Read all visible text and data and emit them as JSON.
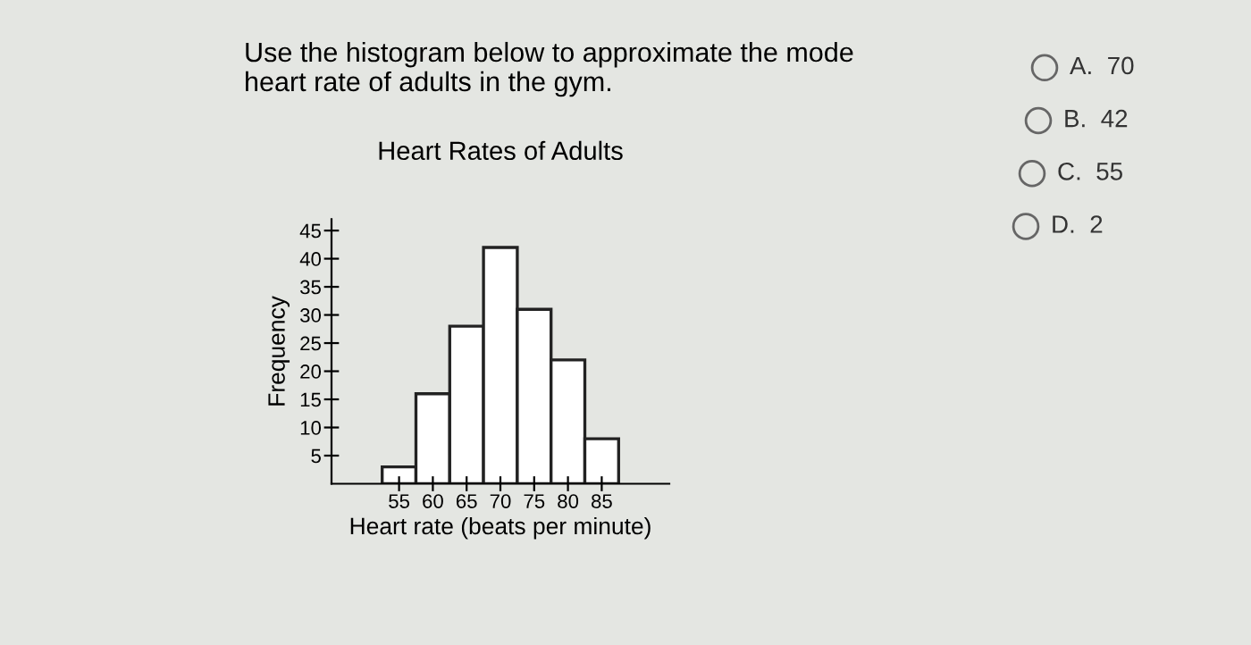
{
  "chart_data": {
    "type": "histogram",
    "title": "Heart Rates of Adults",
    "xlabel": "Heart rate (beats per minute)",
    "ylabel": "Frequency",
    "bins": [
      52.5,
      57.5,
      62.5,
      67.5,
      72.5,
      77.5,
      82.5,
      87.5
    ],
    "values": [
      3,
      16,
      28,
      42,
      31,
      22,
      8
    ],
    "color": "#ffffff",
    "xlim": [
      45,
      95
    ],
    "xticks": [
      55,
      60,
      65,
      70,
      75,
      80,
      85
    ],
    "ylim": [
      0,
      47
    ],
    "yticks": [
      5,
      10,
      15,
      20,
      25,
      30,
      35,
      40,
      45
    ],
    "grid": false,
    "annotations": [
      "Use the histogram below to approximate the mode heart rate of adults in the gym.",
      "A.  70",
      "B.  42",
      "C.  55",
      "D.  2"
    ]
  }
}
